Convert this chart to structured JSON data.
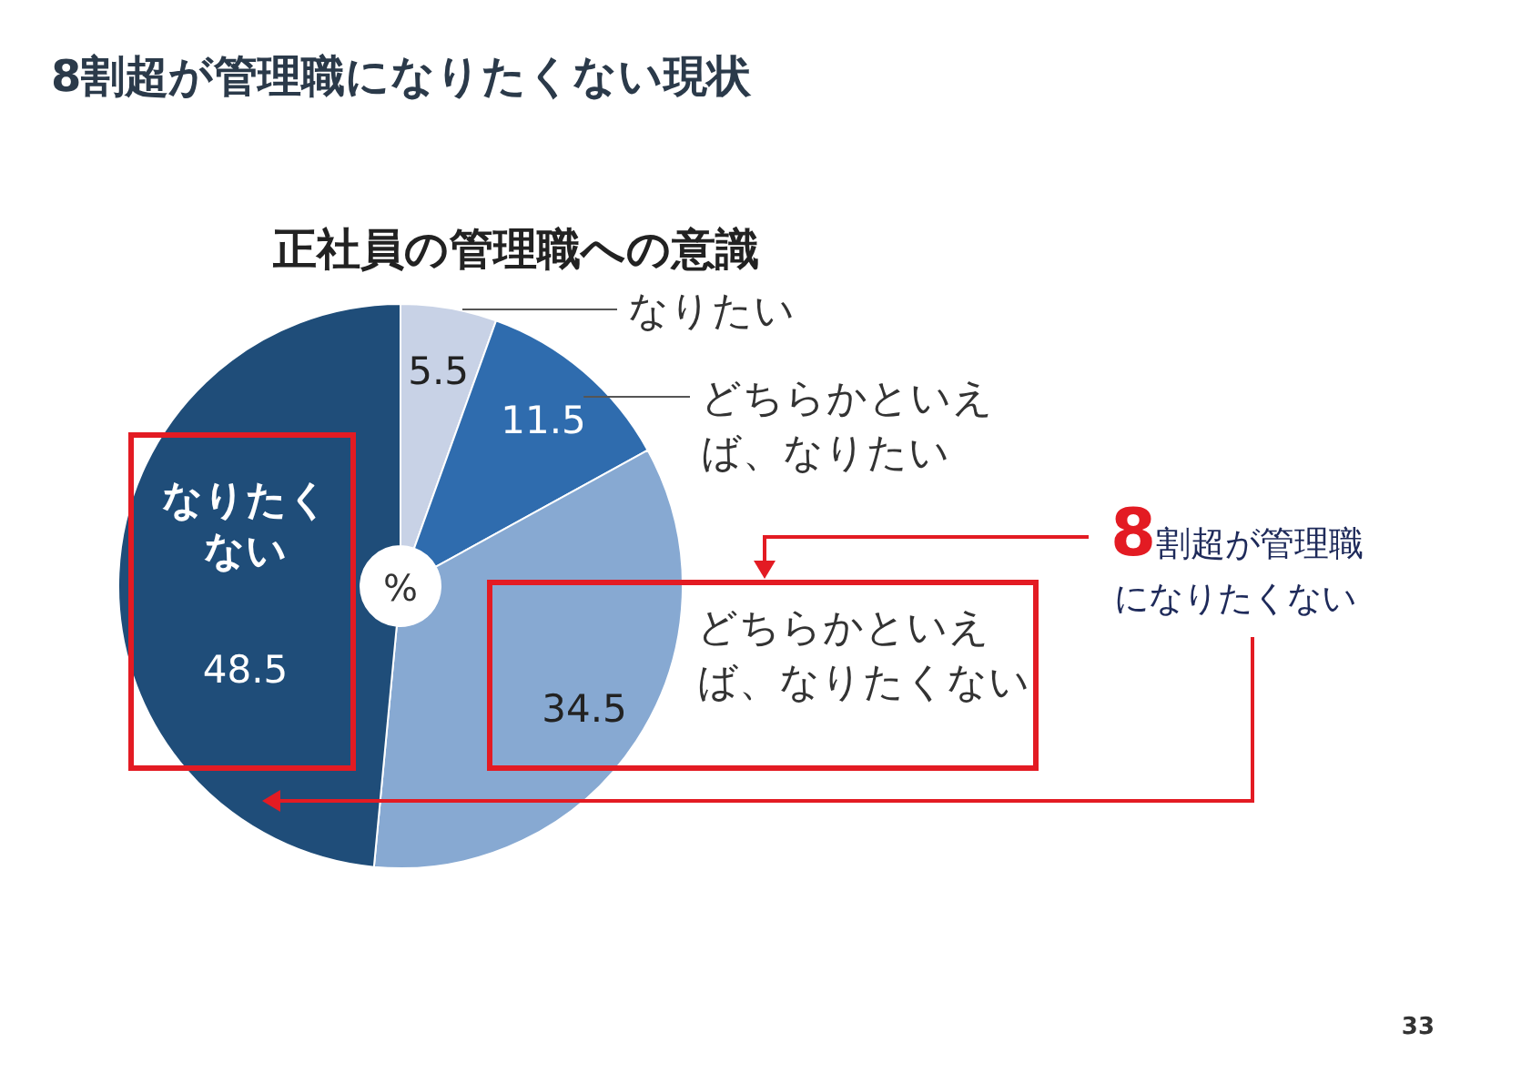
{
  "chart_data": {
    "type": "donut",
    "title": "8割超が管理職になりたくない現状",
    "subtitle": "正社員の管理職への意識",
    "categories": [
      "なりたい",
      "どちらかといえば、なりたい",
      "どちらかといえば、なりたくない",
      "なりたくない"
    ],
    "values": [
      5.5,
      11.5,
      34.5,
      48.5
    ],
    "colors": [
      "#c8d2e6",
      "#2f6cae",
      "#87a9d2",
      "#1f4d79"
    ],
    "data_labels": true,
    "annotations": [
      "%",
      "8割超が管理職になりたくない",
      "33"
    ]
  }
}
